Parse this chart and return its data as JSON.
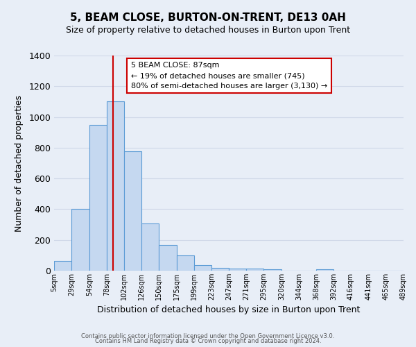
{
  "title": "5, BEAM CLOSE, BURTON-ON-TRENT, DE13 0AH",
  "subtitle": "Size of property relative to detached houses in Burton upon Trent",
  "xlabel": "Distribution of detached houses by size in Burton upon Trent",
  "ylabel": "Number of detached properties",
  "footer_line1": "Contains HM Land Registry data © Crown copyright and database right 2024.",
  "footer_line2": "Contains public sector information licensed under the Open Government Licence v3.0.",
  "bar_edges": [
    5,
    29,
    54,
    78,
    102,
    126,
    150,
    175,
    199,
    223,
    247,
    271,
    295,
    320,
    344,
    368,
    392,
    416,
    441,
    465,
    489
  ],
  "bar_heights": [
    65,
    400,
    950,
    1100,
    775,
    305,
    165,
    100,
    35,
    20,
    15,
    15,
    10,
    0,
    0,
    10,
    0,
    0,
    0,
    0
  ],
  "tick_labels": [
    "5sqm",
    "29sqm",
    "54sqm",
    "78sqm",
    "102sqm",
    "126sqm",
    "150sqm",
    "175sqm",
    "199sqm",
    "223sqm",
    "247sqm",
    "271sqm",
    "295sqm",
    "320sqm",
    "344sqm",
    "368sqm",
    "392sqm",
    "416sqm",
    "441sqm",
    "465sqm",
    "489sqm"
  ],
  "bar_color": "#c5d8f0",
  "bar_edge_color": "#5b9bd5",
  "vline_x": 87,
  "vline_color": "#cc0000",
  "ylim": [
    0,
    1400
  ],
  "yticks": [
    0,
    200,
    400,
    600,
    800,
    1000,
    1200,
    1400
  ],
  "annotation_title": "5 BEAM CLOSE: 87sqm",
  "annotation_line2": "← 19% of detached houses are smaller (745)",
  "annotation_line3": "80% of semi-detached houses are larger (3,130) →",
  "annotation_box_color": "#ffffff",
  "annotation_box_edge_color": "#cc0000",
  "bg_color": "#e8eef7",
  "grid_color": "#d0d8e8"
}
